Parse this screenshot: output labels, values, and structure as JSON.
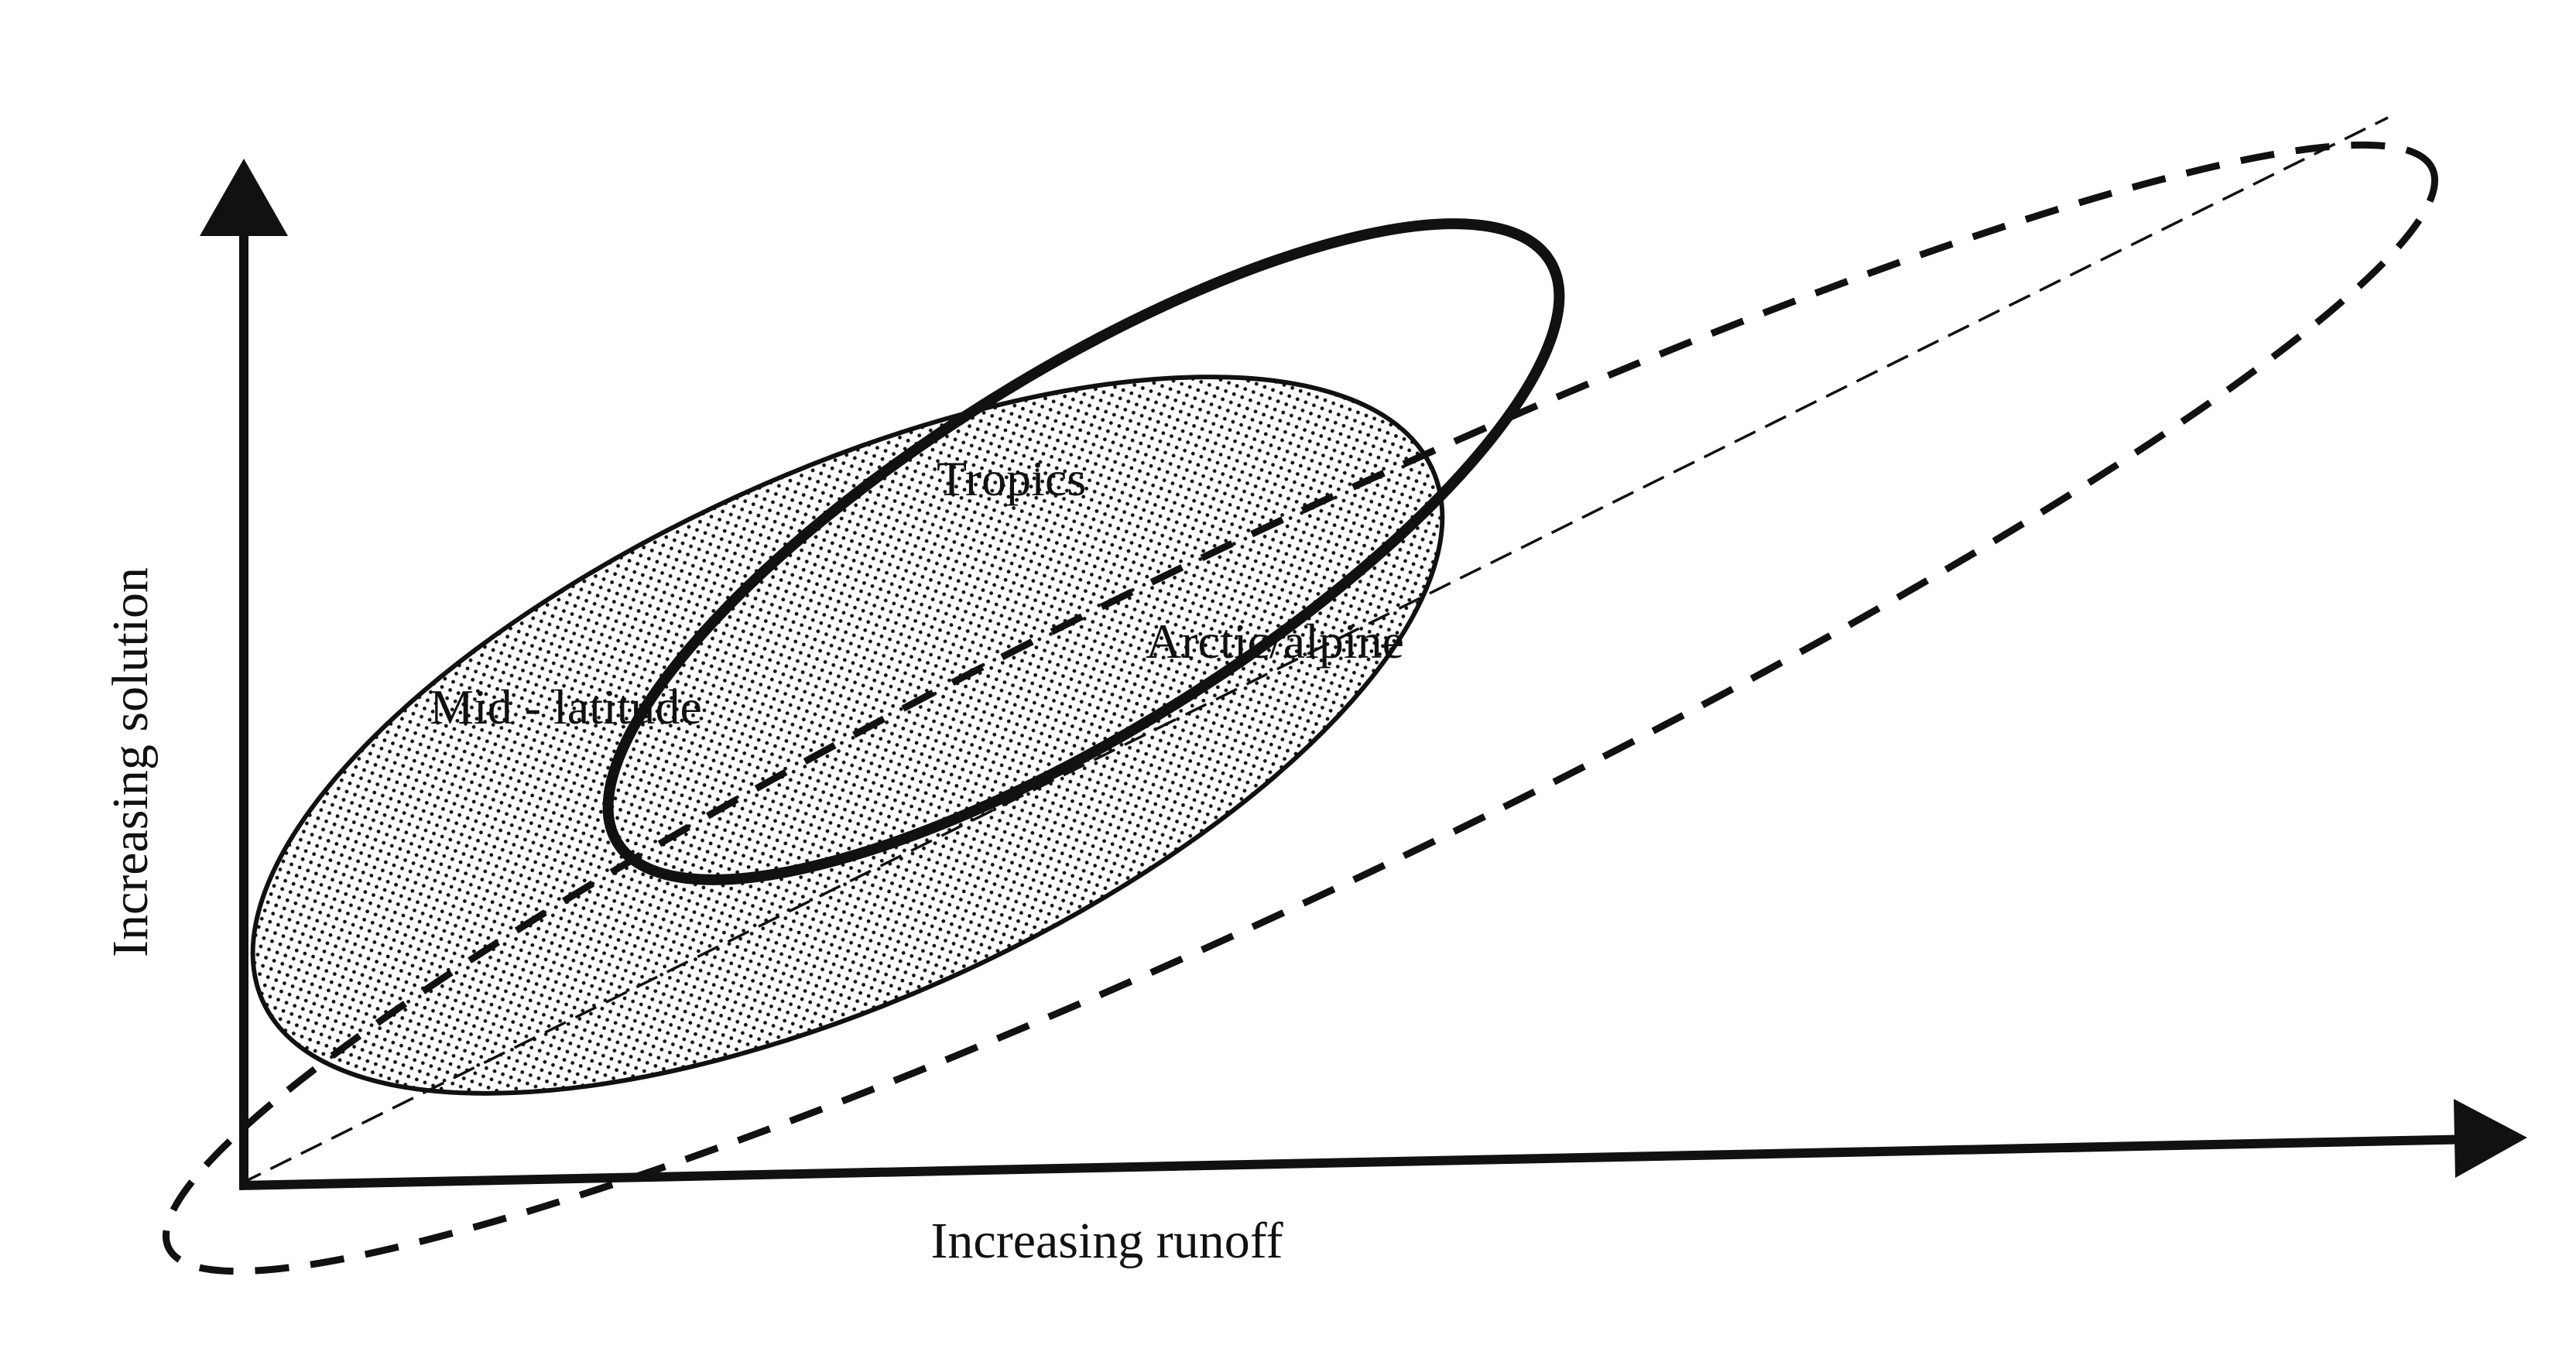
{
  "axes": {
    "x_label": "Increasing runoff",
    "y_label": "Increasing solution"
  },
  "regions": [
    {
      "name": "Tropics",
      "style": "solid-thick"
    },
    {
      "name": "Mid - latitude",
      "style": "stippled-fill"
    },
    {
      "name": "Arctic/alpine",
      "style": "dashed"
    }
  ],
  "colors": {
    "ink": "#111111",
    "background": "#ffffff"
  }
}
